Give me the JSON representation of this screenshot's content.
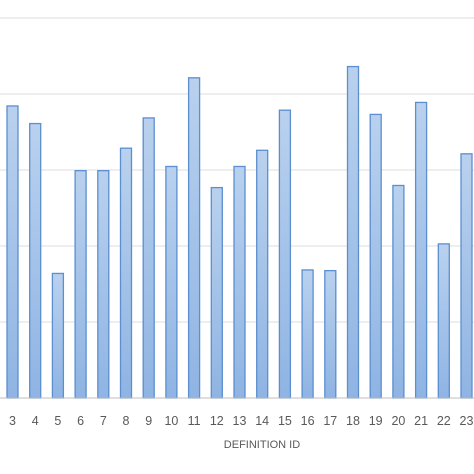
{
  "chart_data": {
    "type": "bar",
    "title": "",
    "xlabel": "DEFINITION ID",
    "ylabel": "",
    "categories": [
      "3",
      "4",
      "5",
      "6",
      "7",
      "8",
      "9",
      "10",
      "11",
      "12",
      "13",
      "14",
      "15",
      "16",
      "17",
      "18",
      "19",
      "20",
      "21",
      "22",
      "23"
    ],
    "values": [
      4.15,
      3.9,
      1.77,
      3.23,
      3.23,
      3.55,
      3.98,
      3.29,
      4.55,
      2.99,
      3.29,
      3.52,
      4.09,
      1.82,
      1.81,
      4.71,
      4.03,
      3.02,
      4.2,
      2.19,
      3.47
    ],
    "ylim": [
      0,
      5.4
    ],
    "grid": true,
    "legend": "none",
    "bar_fill_top": "#b9d1ee",
    "bar_fill_bottom": "#8fb4e3",
    "bar_stroke": "#5b8fd0",
    "grid_color": "#dcdcdc",
    "axis_color": "#bfbfbf",
    "label_color": "#595959"
  }
}
